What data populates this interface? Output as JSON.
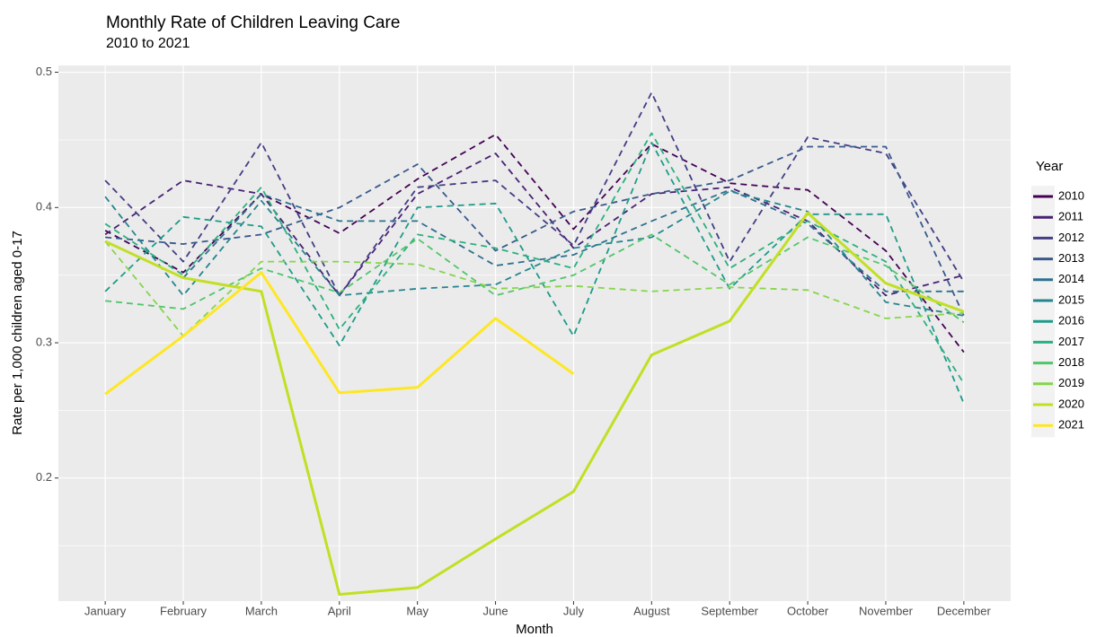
{
  "chart_data": {
    "type": "line",
    "title": "Monthly Rate of Children Leaving Care",
    "subtitle": "2010 to 2021",
    "x_label": "Month",
    "y_label": "Rate per 1,000 children aged 0-17",
    "legend_title": "Year",
    "legend_position": "right",
    "grid": true,
    "categories": [
      "January",
      "February",
      "March",
      "April",
      "May",
      "June",
      "July",
      "August",
      "September",
      "October",
      "November",
      "December"
    ],
    "ylim": [
      0.109,
      0.505
    ],
    "yticks": [
      0.2,
      0.3,
      0.4,
      0.5
    ],
    "series": [
      {
        "name": "2010",
        "color": "#440154",
        "linetype": "dashed",
        "values": [
          0.383,
          0.352,
          0.41,
          0.381,
          0.421,
          0.454,
          0.384,
          0.447,
          0.418,
          0.413,
          0.368,
          0.293
        ]
      },
      {
        "name": "2011",
        "color": "#482173",
        "linetype": "dashed",
        "values": [
          0.38,
          0.42,
          0.41,
          0.335,
          0.41,
          0.44,
          0.37,
          0.41,
          0.415,
          0.39,
          0.335,
          0.35
        ]
      },
      {
        "name": "2012",
        "color": "#433E85",
        "linetype": "dashed",
        "values": [
          0.42,
          0.36,
          0.448,
          0.335,
          0.415,
          0.42,
          0.372,
          0.485,
          0.36,
          0.452,
          0.44,
          0.345
        ]
      },
      {
        "name": "2013",
        "color": "#38598C",
        "linetype": "dashed",
        "values": [
          0.378,
          0.373,
          0.38,
          0.4,
          0.432,
          0.368,
          0.397,
          0.41,
          0.42,
          0.445,
          0.445,
          0.32
        ]
      },
      {
        "name": "2014",
        "color": "#2D708E",
        "linetype": "dashed",
        "values": [
          0.375,
          0.348,
          0.41,
          0.39,
          0.39,
          0.357,
          0.365,
          0.39,
          0.413,
          0.388,
          0.338,
          0.338
        ]
      },
      {
        "name": "2015",
        "color": "#25858E",
        "linetype": "dashed",
        "values": [
          0.408,
          0.335,
          0.405,
          0.335,
          0.34,
          0.343,
          0.37,
          0.378,
          0.412,
          0.397,
          0.33,
          0.32
        ]
      },
      {
        "name": "2016",
        "color": "#1E9B8A",
        "linetype": "dashed",
        "values": [
          0.338,
          0.393,
          0.386,
          0.298,
          0.4,
          0.403,
          0.305,
          0.448,
          0.34,
          0.395,
          0.395,
          0.255
        ]
      },
      {
        "name": "2017",
        "color": "#2BB07F",
        "linetype": "dashed",
        "values": [
          0.388,
          0.35,
          0.415,
          0.31,
          0.38,
          0.37,
          0.355,
          0.455,
          0.355,
          0.39,
          0.36,
          0.27
        ]
      },
      {
        "name": "2018",
        "color": "#51C56A",
        "linetype": "dashed",
        "values": [
          0.331,
          0.325,
          0.355,
          0.337,
          0.377,
          0.335,
          0.35,
          0.38,
          0.343,
          0.378,
          0.357,
          0.315
        ]
      },
      {
        "name": "2019",
        "color": "#85D54A",
        "linetype": "dashed",
        "values": [
          0.375,
          0.305,
          0.36,
          0.36,
          0.358,
          0.34,
          0.342,
          0.338,
          0.341,
          0.339,
          0.318,
          0.322
        ]
      },
      {
        "name": "2020",
        "color": "#C2DF23",
        "linetype": "solid",
        "values": [
          0.375,
          0.348,
          0.338,
          0.114,
          0.119,
          0.155,
          0.19,
          0.291,
          0.316,
          0.396,
          0.344,
          0.323
        ]
      },
      {
        "name": "2021",
        "color": "#FDE725",
        "linetype": "solid",
        "values": [
          0.262,
          0.305,
          0.352,
          0.263,
          0.267,
          0.318,
          0.277,
          null,
          null,
          null,
          null,
          null
        ]
      }
    ]
  }
}
